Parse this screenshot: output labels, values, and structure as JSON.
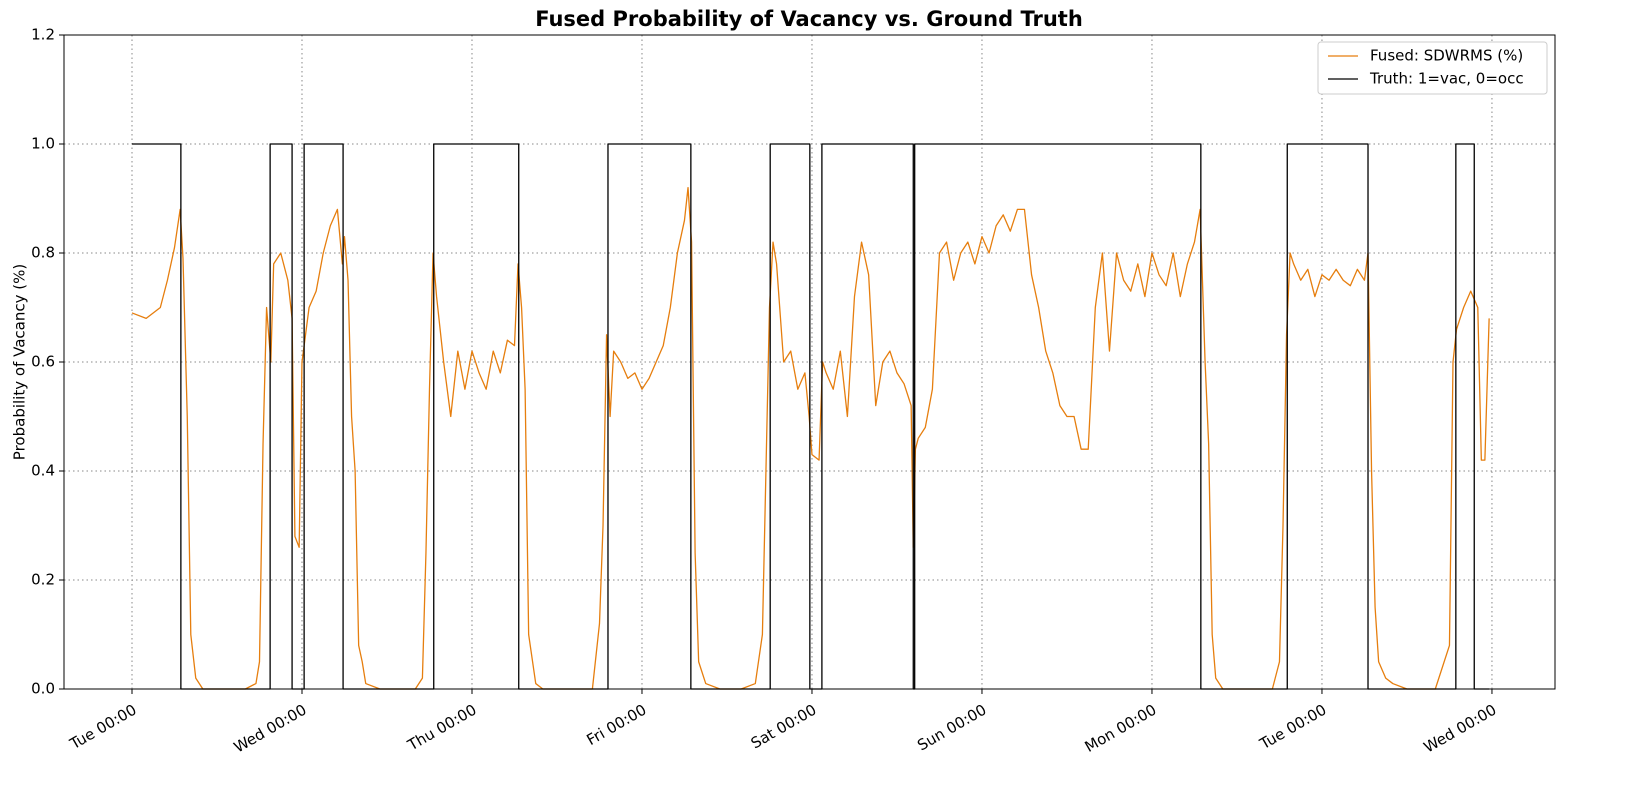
{
  "chart_data": {
    "type": "line",
    "title": "Fused Probability of Vacancy vs. Ground Truth",
    "y_label": "Probability of Vacancy (%)",
    "xlim": [
      -9.6,
      200.9
    ],
    "ylim": [
      0,
      1.2
    ],
    "xticks": [
      {
        "value": 0,
        "label": "Tue 00:00"
      },
      {
        "value": 24,
        "label": "Wed 00:00"
      },
      {
        "value": 48,
        "label": "Thu 00:00"
      },
      {
        "value": 72,
        "label": "Fri 00:00"
      },
      {
        "value": 96,
        "label": "Sat 00:00"
      },
      {
        "value": 120,
        "label": "Sun 00:00"
      },
      {
        "value": 144,
        "label": "Mon 00:00"
      },
      {
        "value": 168,
        "label": "Tue 00:00"
      },
      {
        "value": 192,
        "label": "Wed 00:00"
      }
    ],
    "yticks": [
      {
        "value": 0,
        "label": "0.0"
      },
      0.2,
      0.4,
      0.6,
      0.8,
      {
        "value": 1,
        "label": "1.0"
      },
      1.2
    ],
    "grid": true,
    "legend": "upper right",
    "series": [
      {
        "name": "Fused: SDWRMS (%)",
        "color": "#e67e0e",
        "x": [
          0,
          2,
          4,
          5,
          6,
          6.8,
          7.2,
          7.8,
          8.3,
          9,
          10,
          12,
          14,
          16,
          17.5,
          18,
          18.5,
          19,
          19.6,
          20,
          21,
          22,
          22.6,
          23,
          23.6,
          24,
          25,
          26,
          27,
          28,
          29,
          29.7,
          30,
          30.5,
          31,
          31.5,
          32,
          32.5,
          33,
          35,
          38,
          40,
          41,
          41.5,
          42,
          42.5,
          43,
          44,
          45,
          46,
          47,
          48,
          49,
          50,
          51,
          52,
          53,
          54,
          54.5,
          55,
          55.5,
          56,
          57,
          58,
          62,
          65,
          66,
          66.5,
          67,
          67.5,
          68,
          69,
          70,
          71,
          72,
          73,
          74,
          75,
          76,
          77,
          78,
          78.5,
          79,
          79.5,
          80,
          81,
          83,
          86,
          88,
          89,
          89.5,
          90,
          90.5,
          91,
          92,
          93,
          94,
          95,
          95.6,
          96,
          97,
          97.5,
          98,
          99,
          100,
          101,
          102,
          103,
          104,
          105,
          106,
          107,
          108,
          109,
          110,
          110.3,
          110.6,
          111,
          112,
          113,
          114,
          115,
          116,
          117,
          118,
          119,
          120,
          121,
          122,
          123,
          124,
          125,
          126,
          127,
          128,
          129,
          130,
          131,
          132,
          133,
          134,
          135,
          136,
          137,
          138,
          139,
          140,
          141,
          142,
          143,
          144,
          145,
          146,
          147,
          148,
          149,
          150,
          150.8,
          151.5,
          152,
          152.5,
          153,
          154,
          158,
          161,
          162,
          162.5,
          163,
          163.5,
          164,
          165,
          166,
          167,
          168,
          169,
          170,
          171,
          172,
          173,
          174,
          174.5,
          175,
          175.5,
          176,
          177,
          178,
          180,
          184,
          186,
          186.5,
          187,
          188,
          189,
          190,
          190.5,
          191,
          191.6
        ],
        "values": [
          0.69,
          0.68,
          0.7,
          0.75,
          0.81,
          0.88,
          0.79,
          0.5,
          0.1,
          0.02,
          0,
          0,
          0,
          0,
          0.01,
          0.05,
          0.45,
          0.7,
          0.6,
          0.78,
          0.8,
          0.75,
          0.68,
          0.28,
          0.26,
          0.6,
          0.7,
          0.73,
          0.8,
          0.85,
          0.88,
          0.78,
          0.83,
          0.75,
          0.5,
          0.4,
          0.08,
          0.05,
          0.01,
          0,
          0,
          0,
          0.02,
          0.25,
          0.55,
          0.8,
          0.72,
          0.6,
          0.5,
          0.62,
          0.55,
          0.62,
          0.58,
          0.55,
          0.62,
          0.58,
          0.64,
          0.63,
          0.78,
          0.7,
          0.55,
          0.1,
          0.01,
          0,
          0,
          0,
          0.12,
          0.3,
          0.65,
          0.5,
          0.62,
          0.6,
          0.57,
          0.58,
          0.55,
          0.57,
          0.6,
          0.63,
          0.7,
          0.8,
          0.86,
          0.92,
          0.82,
          0.25,
          0.05,
          0.01,
          0,
          0,
          0.01,
          0.1,
          0.4,
          0.7,
          0.82,
          0.78,
          0.6,
          0.62,
          0.55,
          0.58,
          0.5,
          0.43,
          0.42,
          0.6,
          0.58,
          0.55,
          0.62,
          0.5,
          0.72,
          0.82,
          0.76,
          0.52,
          0.6,
          0.62,
          0.58,
          0.56,
          0.52,
          0.26,
          0.44,
          0.46,
          0.48,
          0.55,
          0.8,
          0.82,
          0.75,
          0.8,
          0.82,
          0.78,
          0.83,
          0.8,
          0.85,
          0.87,
          0.84,
          0.88,
          0.88,
          0.76,
          0.7,
          0.62,
          0.58,
          0.52,
          0.5,
          0.5,
          0.44,
          0.44,
          0.7,
          0.8,
          0.62,
          0.8,
          0.75,
          0.73,
          0.78,
          0.72,
          0.8,
          0.76,
          0.74,
          0.8,
          0.72,
          0.78,
          0.82,
          0.88,
          0.6,
          0.45,
          0.1,
          0.02,
          0,
          0,
          0,
          0.05,
          0.3,
          0.65,
          0.8,
          0.78,
          0.75,
          0.77,
          0.72,
          0.76,
          0.75,
          0.77,
          0.75,
          0.74,
          0.77,
          0.75,
          0.8,
          0.4,
          0.15,
          0.05,
          0.02,
          0.01,
          0,
          0,
          0.08,
          0.6,
          0.66,
          0.7,
          0.73,
          0.7,
          0.42,
          0.42,
          0.68
        ]
      },
      {
        "name": "Truth: 1=vac, 0=occ",
        "color": "#000000",
        "x": [
          0,
          6.9,
          6.9,
          19.5,
          19.5,
          22.6,
          22.6,
          24.3,
          24.3,
          29.8,
          29.8,
          42.6,
          42.6,
          54.6,
          54.6,
          67.2,
          67.2,
          78.9,
          78.9,
          90.1,
          90.1,
          95.7,
          95.7,
          97.4,
          97.4,
          110.3,
          110.3,
          110.5,
          110.5,
          150.9,
          150.9,
          163.1,
          163.1,
          174.5,
          174.5,
          186.9,
          186.9,
          189.5,
          189.5,
          191.6
        ],
        "values": [
          1,
          1,
          0,
          0,
          1,
          1,
          0,
          0,
          1,
          1,
          0,
          0,
          1,
          1,
          0,
          0,
          1,
          1,
          0,
          0,
          1,
          1,
          0,
          0,
          1,
          1,
          0,
          0,
          1,
          1,
          0,
          0,
          1,
          1,
          0,
          0,
          1,
          1,
          0,
          0
        ]
      }
    ]
  }
}
